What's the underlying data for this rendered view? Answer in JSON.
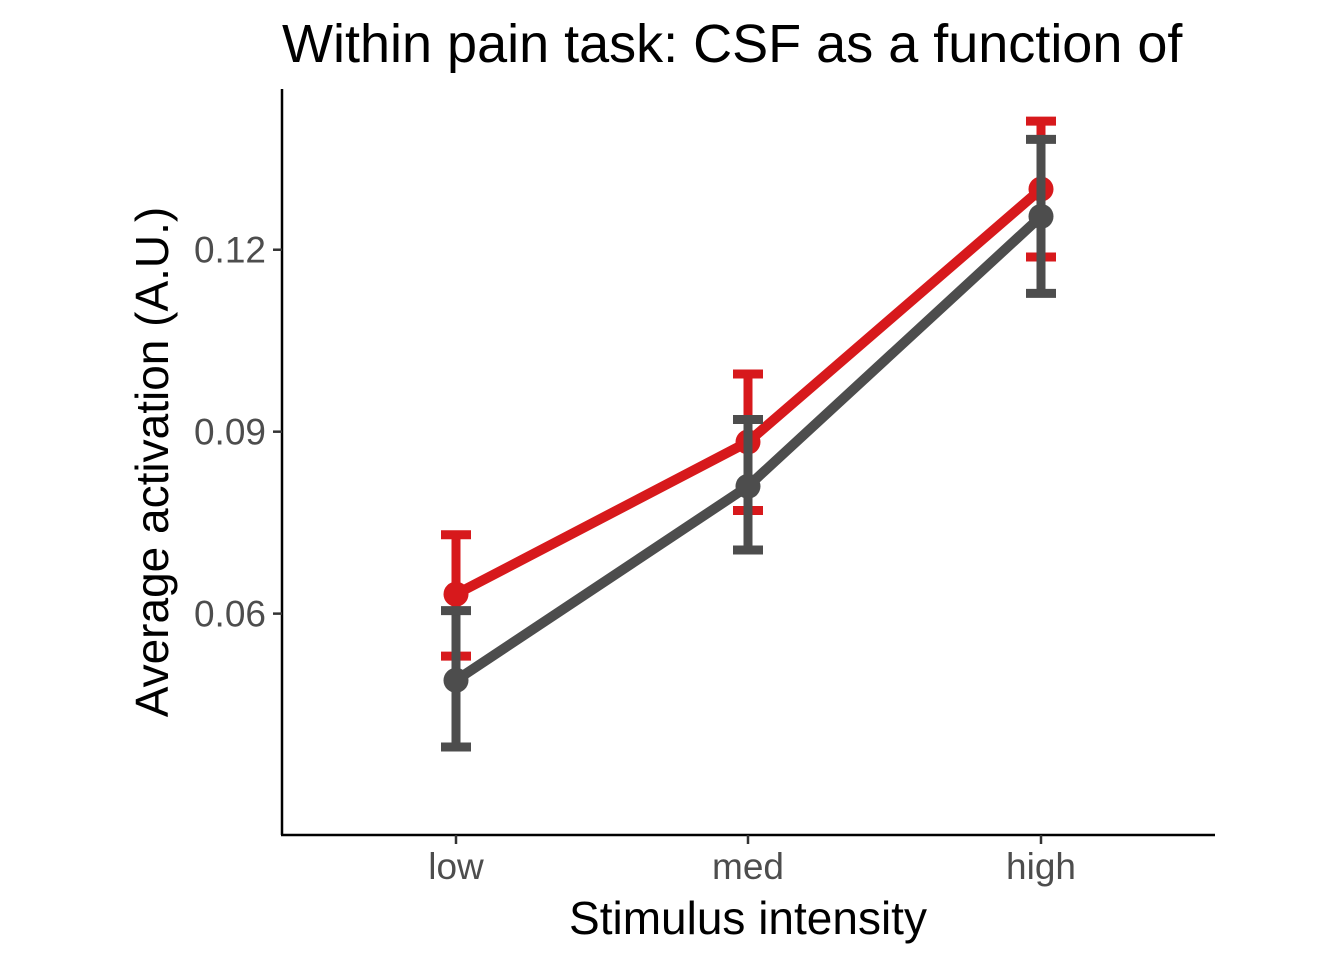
{
  "chart_data": {
    "type": "line",
    "title": "Within pain task: CSF as a function of",
    "xlabel": "Stimulus intensity",
    "ylabel": "Average activation (A.U.)",
    "categories": [
      "low",
      "med",
      "high"
    ],
    "ylim": [
      0.0235,
      0.1465
    ],
    "yticks": [
      0.06,
      0.09,
      0.12
    ],
    "ytick_labels": [
      "0.06",
      "0.09",
      "0.12"
    ],
    "grid": false,
    "legend": "none",
    "series": [
      {
        "color": "#d7191c",
        "values": [
          0.0632,
          0.0883,
          0.13
        ],
        "err_low": [
          0.053,
          0.077,
          0.1188
        ],
        "err_high": [
          0.073,
          0.0995,
          0.1412
        ]
      },
      {
        "color": "#4d4d4d",
        "values": [
          0.049,
          0.081,
          0.1255
        ],
        "err_low": [
          0.038,
          0.0705,
          0.1128
        ],
        "err_high": [
          0.0605,
          0.092,
          0.1382
        ]
      }
    ]
  }
}
